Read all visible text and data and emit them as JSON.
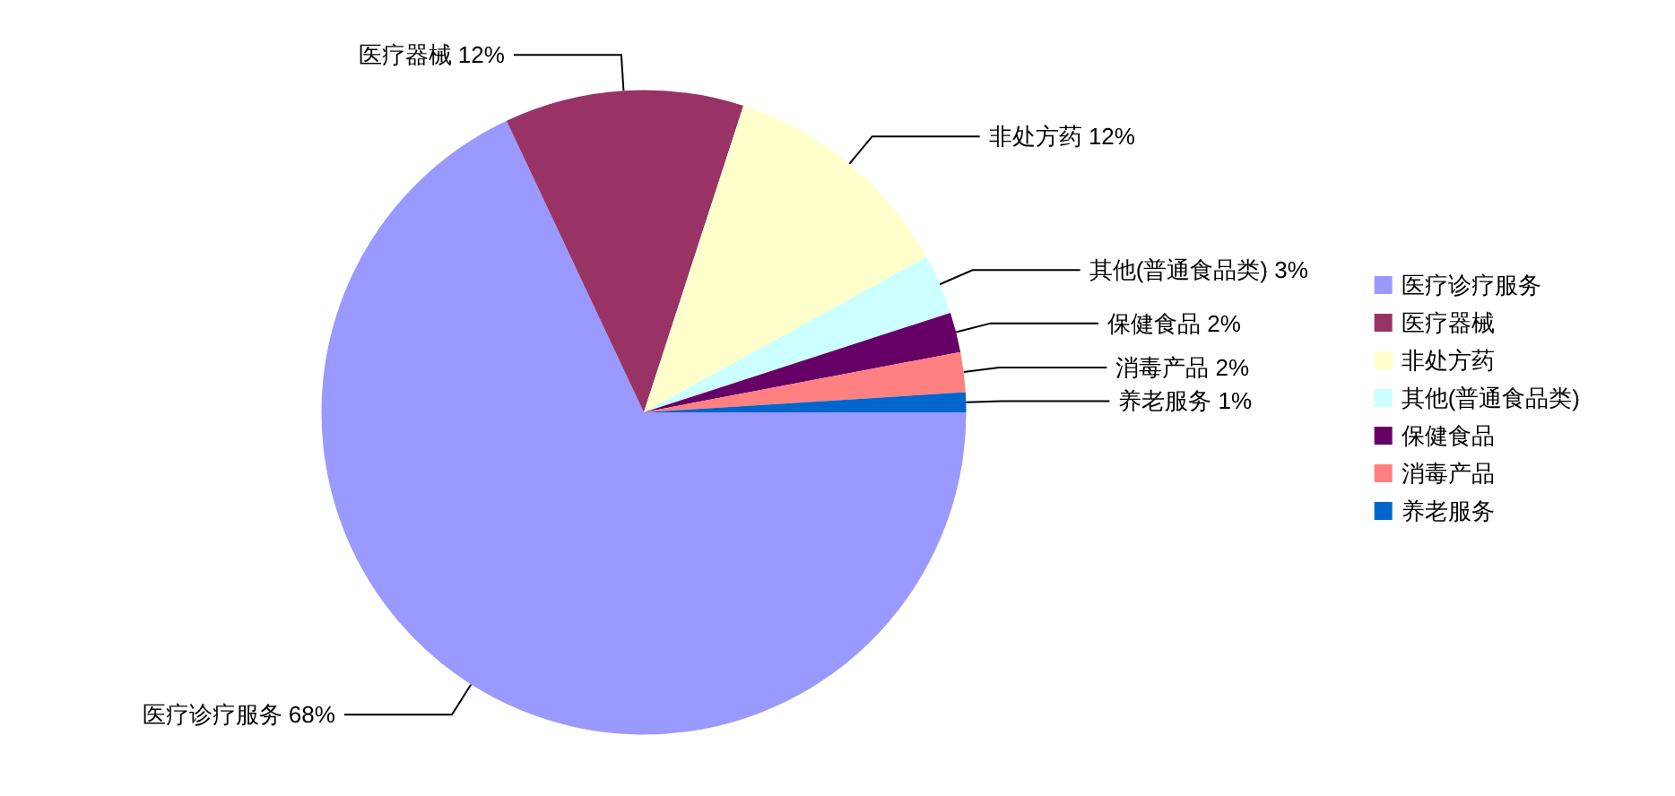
{
  "chart_data": {
    "type": "pie",
    "categories": [
      "医疗诊疗服务",
      "医疗器械",
      "非处方药",
      "其他(普通食品类)",
      "保健食品",
      "消毒产品",
      "养老服务"
    ],
    "values": [
      68,
      12,
      12,
      3,
      2,
      2,
      1
    ],
    "colors": [
      "#9999ff",
      "#993366",
      "#ffffcc",
      "#ccffff",
      "#660066",
      "#ff8080",
      "#0066cc"
    ],
    "value_labels": [
      "68%",
      "12%",
      "12%",
      "3%",
      "2%",
      "2%",
      "1%"
    ],
    "legend": "right"
  }
}
